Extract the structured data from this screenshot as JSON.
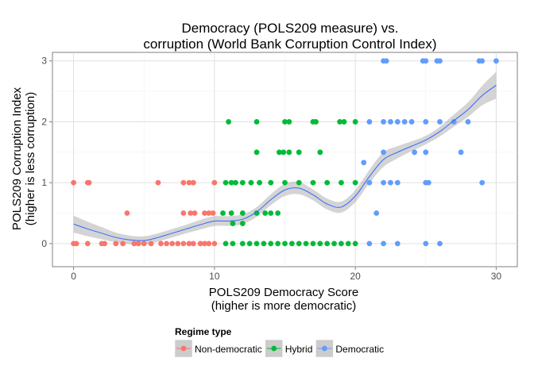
{
  "chart_data": {
    "type": "scatter",
    "title_lines": [
      "Democracy (POLS209 measure) vs.",
      "corruption (World Bank Corruption Control Index)"
    ],
    "xlabel_lines": [
      "POLS209 Democracy Score",
      "(higher is more democratic)"
    ],
    "ylabel_lines": [
      "POLS209 Corruption Index",
      "(higher is less corruption)"
    ],
    "xlim": [
      -1.5,
      31.5
    ],
    "ylim": [
      -0.38,
      3.14
    ],
    "x_ticks": [
      0,
      10,
      20,
      30
    ],
    "y_ticks": [
      0,
      1,
      2,
      3
    ],
    "grid": true,
    "legend": {
      "title": "Regime type",
      "position": "bottom",
      "entries": [
        {
          "name": "Non-democratic",
          "color": "#F8766D"
        },
        {
          "name": "Hybrid",
          "color": "#00BA38"
        },
        {
          "name": "Democratic",
          "color": "#619CFF"
        }
      ]
    },
    "series": [
      {
        "name": "Non-democratic",
        "color": "#F8766D",
        "points": [
          [
            0,
            1
          ],
          [
            1,
            1
          ],
          [
            1.1,
            1
          ],
          [
            6,
            1
          ],
          [
            7.8,
            1
          ],
          [
            8.2,
            1
          ],
          [
            8.5,
            1
          ],
          [
            10,
            1
          ],
          [
            3.8,
            0.5
          ],
          [
            7.8,
            0.5
          ],
          [
            8.3,
            0.5
          ],
          [
            8.6,
            0.5
          ],
          [
            9.3,
            0.5
          ],
          [
            9.6,
            0.5
          ],
          [
            9.9,
            0.5
          ],
          [
            0,
            0
          ],
          [
            0.2,
            0
          ],
          [
            1,
            0
          ],
          [
            2,
            0
          ],
          [
            2.2,
            0
          ],
          [
            3,
            0
          ],
          [
            3.5,
            0
          ],
          [
            4.3,
            0
          ],
          [
            4.6,
            0
          ],
          [
            5,
            0
          ],
          [
            5.5,
            0
          ],
          [
            6.2,
            0
          ],
          [
            6.6,
            0
          ],
          [
            7,
            0
          ],
          [
            7.4,
            0
          ],
          [
            7.8,
            0
          ],
          [
            8.2,
            0
          ],
          [
            8.5,
            0
          ],
          [
            9,
            0
          ],
          [
            9.3,
            0
          ],
          [
            9.6,
            0
          ],
          [
            10,
            0
          ]
        ]
      },
      {
        "name": "Hybrid",
        "color": "#00BA38",
        "points": [
          [
            11,
            2
          ],
          [
            13,
            2
          ],
          [
            15,
            2
          ],
          [
            15.3,
            2
          ],
          [
            17,
            2
          ],
          [
            17.2,
            2
          ],
          [
            18.9,
            2
          ],
          [
            19.2,
            2
          ],
          [
            20,
            2
          ],
          [
            13,
            1.5
          ],
          [
            14.6,
            1.5
          ],
          [
            14.9,
            1.5
          ],
          [
            15.3,
            1.5
          ],
          [
            16,
            1.5
          ],
          [
            17.5,
            1.5
          ],
          [
            10.8,
            1
          ],
          [
            11.2,
            1
          ],
          [
            11.5,
            1
          ],
          [
            12,
            1
          ],
          [
            12.6,
            1
          ],
          [
            13.2,
            1
          ],
          [
            14,
            1
          ],
          [
            15,
            1
          ],
          [
            16,
            1
          ],
          [
            17,
            1
          ],
          [
            18,
            1
          ],
          [
            19,
            1
          ],
          [
            20,
            1
          ],
          [
            10.6,
            0.5
          ],
          [
            11.2,
            0.5
          ],
          [
            12,
            0.5
          ],
          [
            13,
            0.5
          ],
          [
            13.6,
            0.5
          ],
          [
            14,
            0.5
          ],
          [
            14.5,
            0.5
          ],
          [
            11.3,
            0.33
          ],
          [
            12,
            0.33
          ],
          [
            10.8,
            0
          ],
          [
            11.3,
            0
          ],
          [
            12,
            0
          ],
          [
            12.5,
            0
          ],
          [
            13,
            0
          ],
          [
            13.5,
            0
          ],
          [
            14,
            0
          ],
          [
            14.5,
            0
          ],
          [
            15,
            0
          ],
          [
            15.5,
            0
          ],
          [
            16,
            0
          ],
          [
            16.5,
            0
          ],
          [
            17,
            0
          ],
          [
            17.5,
            0
          ],
          [
            18,
            0
          ],
          [
            18.5,
            0
          ],
          [
            19,
            0
          ],
          [
            19.5,
            0
          ],
          [
            20,
            0
          ]
        ]
      },
      {
        "name": "Democratic",
        "color": "#619CFF",
        "points": [
          [
            22,
            3
          ],
          [
            22.2,
            3
          ],
          [
            24.8,
            3
          ],
          [
            25,
            3
          ],
          [
            25.8,
            3
          ],
          [
            26,
            3
          ],
          [
            28.8,
            3
          ],
          [
            29,
            3
          ],
          [
            30,
            3
          ],
          [
            21,
            2
          ],
          [
            22,
            2
          ],
          [
            22.5,
            2
          ],
          [
            23,
            2
          ],
          [
            23.5,
            2
          ],
          [
            24,
            2
          ],
          [
            25,
            2
          ],
          [
            26,
            2
          ],
          [
            27,
            2
          ],
          [
            28,
            2
          ],
          [
            24.2,
            1.5
          ],
          [
            25,
            1.5
          ],
          [
            27.5,
            1.5
          ],
          [
            22,
            1.5
          ],
          [
            20.6,
            1.33
          ],
          [
            21,
            1
          ],
          [
            22,
            1
          ],
          [
            22.5,
            1
          ],
          [
            23,
            1
          ],
          [
            25,
            1
          ],
          [
            25.2,
            1
          ],
          [
            29,
            1
          ],
          [
            21.5,
            0.5
          ],
          [
            21,
            0
          ],
          [
            22,
            0
          ],
          [
            23,
            0
          ],
          [
            25,
            0
          ],
          [
            26,
            0
          ]
        ]
      }
    ],
    "smooth_fit": {
      "color": "#3366FF",
      "band_color": "#999999",
      "points": [
        [
          0,
          0.32,
          0.14
        ],
        [
          1,
          0.24,
          0.12
        ],
        [
          2,
          0.17,
          0.1
        ],
        [
          3,
          0.1,
          0.08
        ],
        [
          4,
          0.06,
          0.07
        ],
        [
          5,
          0.05,
          0.07
        ],
        [
          6,
          0.1,
          0.07
        ],
        [
          7,
          0.17,
          0.07
        ],
        [
          8,
          0.24,
          0.07
        ],
        [
          9,
          0.31,
          0.08
        ],
        [
          10,
          0.37,
          0.08
        ],
        [
          11,
          0.37,
          0.08
        ],
        [
          12,
          0.4,
          0.08
        ],
        [
          13,
          0.52,
          0.08
        ],
        [
          14,
          0.72,
          0.09
        ],
        [
          15,
          0.88,
          0.1
        ],
        [
          16,
          0.91,
          0.1
        ],
        [
          17,
          0.8,
          0.09
        ],
        [
          18,
          0.65,
          0.09
        ],
        [
          19,
          0.6,
          0.09
        ],
        [
          20,
          0.78,
          0.1
        ],
        [
          21,
          1.1,
          0.11
        ],
        [
          22,
          1.38,
          0.12
        ],
        [
          23,
          1.5,
          0.1
        ],
        [
          24,
          1.6,
          0.08
        ],
        [
          25,
          1.7,
          0.07
        ],
        [
          26,
          1.84,
          0.08
        ],
        [
          27,
          2.02,
          0.1
        ],
        [
          28,
          2.2,
          0.12
        ],
        [
          29,
          2.43,
          0.16
        ],
        [
          30,
          2.6,
          0.22
        ]
      ]
    }
  }
}
